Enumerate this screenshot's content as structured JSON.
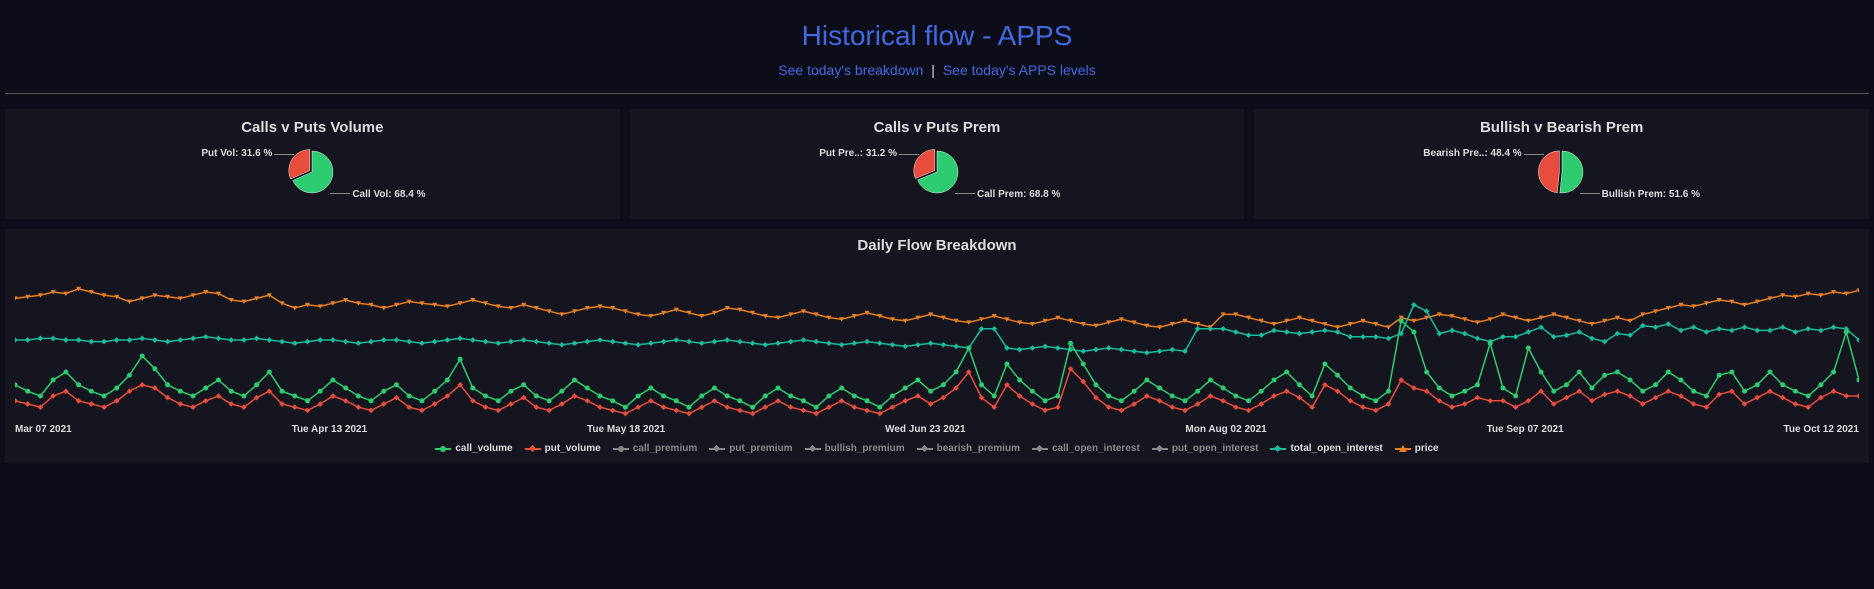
{
  "header": {
    "title": "Historical flow - APPS",
    "link1": "See today's breakdown",
    "link2": "See today's APPS levels"
  },
  "colors": {
    "green": "#2ecc71",
    "red": "#e74c3c",
    "orange": "#e67e22",
    "teal": "#1abc9c",
    "grey": "#888888",
    "bg_panel": "#15151f",
    "text": "#dddddd"
  },
  "pies": [
    {
      "title": "Calls v Puts Volume",
      "slices": [
        {
          "label": "Call Vol: 68.4 %",
          "value": 68.4,
          "color": "#2ecc71"
        },
        {
          "label": "Put Vol: 31.6 %",
          "value": 31.6,
          "color": "#e74c3c"
        }
      ]
    },
    {
      "title": "Calls v Puts Prem",
      "slices": [
        {
          "label": "Call Prem: 68.8 %",
          "value": 68.8,
          "color": "#2ecc71"
        },
        {
          "label": "Put Pre..: 31.2 %",
          "value": 31.2,
          "color": "#e74c3c"
        }
      ]
    },
    {
      "title": "Bullish v Bearish Prem",
      "slices": [
        {
          "label": "Bullish Prem: 51.6 %",
          "value": 51.6,
          "color": "#2ecc71"
        },
        {
          "label": "Bearish Pre..: 48.4 %",
          "value": 48.4,
          "color": "#e74c3c"
        }
      ]
    }
  ],
  "chart": {
    "title": "Daily Flow Breakdown",
    "type": "line",
    "x_ticks": [
      "Mar 07 2021",
      "Tue Apr 13 2021",
      "Tue May 18 2021",
      "Wed Jun 23 2021",
      "Mon Aug 02 2021",
      "Tue Sep 07 2021",
      "Tue Oct 12 2021"
    ],
    "ylim": [
      0,
      100
    ],
    "legend": [
      {
        "key": "call_volume",
        "color": "#2ecc71",
        "marker": "circle",
        "active": true
      },
      {
        "key": "put_volume",
        "color": "#e74c3c",
        "marker": "diamond",
        "active": true
      },
      {
        "key": "call_premium",
        "color": "#888888",
        "marker": "circle",
        "active": false
      },
      {
        "key": "put_premium",
        "color": "#888888",
        "marker": "diamond",
        "active": false
      },
      {
        "key": "bullish_premium",
        "color": "#888888",
        "marker": "diamond",
        "active": false
      },
      {
        "key": "bearish_premium",
        "color": "#888888",
        "marker": "diamond",
        "active": false
      },
      {
        "key": "call_open_interest",
        "color": "#888888",
        "marker": "diamond",
        "active": false
      },
      {
        "key": "put_open_interest",
        "color": "#888888",
        "marker": "diamond",
        "active": false
      },
      {
        "key": "total_open_interest",
        "color": "#1abc9c",
        "marker": "diamond",
        "active": true
      },
      {
        "key": "price",
        "color": "#e67e22",
        "marker": "tri",
        "active": true
      }
    ],
    "series": {
      "price": [
        76,
        77,
        78,
        80,
        79,
        82,
        80,
        78,
        77,
        74,
        76,
        78,
        77,
        76,
        78,
        80,
        79,
        75,
        74,
        76,
        78,
        73,
        70,
        72,
        71,
        73,
        75,
        73,
        72,
        70,
        72,
        74,
        73,
        72,
        71,
        73,
        75,
        73,
        71,
        70,
        72,
        70,
        68,
        66,
        68,
        70,
        71,
        70,
        68,
        66,
        65,
        67,
        69,
        67,
        65,
        67,
        70,
        69,
        67,
        65,
        64,
        66,
        68,
        66,
        64,
        63,
        65,
        67,
        65,
        63,
        62,
        64,
        66,
        64,
        62,
        61,
        63,
        65,
        63,
        61,
        60,
        62,
        64,
        62,
        60,
        59,
        61,
        63,
        61,
        59,
        58,
        60,
        62,
        60,
        58,
        66,
        66,
        64,
        62,
        60,
        62,
        64,
        62,
        60,
        58,
        60,
        62,
        60,
        58,
        64,
        62,
        64,
        66,
        65,
        63,
        61,
        63,
        66,
        64,
        62,
        64,
        66,
        64,
        62,
        60,
        62,
        64,
        62,
        66,
        68,
        70,
        72,
        71,
        73,
        75,
        74,
        72,
        74,
        76,
        78,
        77,
        79,
        78,
        80,
        79,
        81
      ],
      "total_open_interest": [
        50,
        50,
        51,
        51,
        50,
        50,
        49,
        49,
        50,
        50,
        51,
        50,
        49,
        50,
        51,
        52,
        51,
        50,
        50,
        51,
        50,
        49,
        48,
        49,
        50,
        50,
        49,
        48,
        49,
        50,
        50,
        49,
        48,
        49,
        50,
        51,
        50,
        49,
        48,
        49,
        50,
        49,
        48,
        47,
        48,
        49,
        50,
        49,
        48,
        47,
        48,
        49,
        50,
        49,
        48,
        49,
        50,
        49,
        48,
        47,
        48,
        49,
        50,
        49,
        48,
        47,
        48,
        49,
        48,
        47,
        46,
        47,
        48,
        47,
        46,
        45,
        57,
        57,
        45,
        44,
        45,
        46,
        45,
        44,
        43,
        44,
        45,
        44,
        43,
        42,
        43,
        44,
        43,
        57,
        57,
        57,
        55,
        53,
        53,
        56,
        55,
        54,
        55,
        56,
        55,
        52,
        52,
        52,
        51,
        54,
        72,
        68,
        54,
        56,
        54,
        51,
        49,
        52,
        52,
        55,
        58,
        52,
        53,
        55,
        51,
        49,
        54,
        53,
        59,
        58,
        60,
        56,
        58,
        55,
        57,
        56,
        58,
        56,
        56,
        58,
        55,
        57,
        56,
        58,
        57,
        50
      ],
      "call_volume": [
        22,
        18,
        15,
        25,
        30,
        22,
        18,
        15,
        20,
        28,
        40,
        32,
        22,
        18,
        15,
        20,
        25,
        18,
        15,
        22,
        30,
        18,
        15,
        12,
        18,
        25,
        20,
        15,
        12,
        18,
        22,
        15,
        12,
        18,
        25,
        38,
        20,
        15,
        12,
        18,
        22,
        15,
        12,
        18,
        25,
        20,
        15,
        12,
        8,
        15,
        20,
        15,
        12,
        8,
        15,
        20,
        15,
        12,
        8,
        15,
        20,
        15,
        12,
        8,
        15,
        20,
        15,
        12,
        8,
        15,
        20,
        25,
        18,
        22,
        30,
        45,
        22,
        15,
        35,
        25,
        18,
        12,
        15,
        48,
        35,
        22,
        15,
        12,
        18,
        25,
        20,
        15,
        12,
        18,
        25,
        20,
        15,
        12,
        18,
        25,
        30,
        22,
        15,
        35,
        28,
        20,
        15,
        12,
        18,
        62,
        55,
        30,
        20,
        15,
        18,
        22,
        48,
        20,
        15,
        45,
        30,
        18,
        22,
        30,
        20,
        28,
        30,
        25,
        18,
        22,
        30,
        25,
        18,
        15,
        28,
        30,
        18,
        22,
        30,
        22,
        18,
        15,
        22,
        30,
        55,
        25
      ],
      "put_volume": [
        12,
        10,
        8,
        15,
        18,
        12,
        10,
        8,
        12,
        18,
        22,
        20,
        14,
        10,
        8,
        12,
        15,
        10,
        8,
        14,
        18,
        10,
        8,
        6,
        10,
        15,
        12,
        8,
        6,
        10,
        14,
        8,
        6,
        10,
        15,
        22,
        12,
        8,
        6,
        10,
        14,
        8,
        6,
        10,
        15,
        12,
        8,
        6,
        4,
        8,
        12,
        8,
        6,
        4,
        8,
        12,
        8,
        6,
        4,
        8,
        12,
        8,
        6,
        4,
        8,
        12,
        8,
        6,
        4,
        8,
        12,
        15,
        10,
        14,
        20,
        30,
        14,
        8,
        22,
        15,
        10,
        6,
        8,
        32,
        24,
        14,
        8,
        6,
        10,
        15,
        12,
        8,
        6,
        10,
        15,
        12,
        8,
        6,
        10,
        15,
        18,
        14,
        8,
        22,
        18,
        12,
        8,
        6,
        10,
        25,
        20,
        18,
        12,
        8,
        10,
        14,
        12,
        12,
        8,
        12,
        18,
        10,
        14,
        18,
        12,
        16,
        18,
        15,
        10,
        14,
        18,
        15,
        10,
        8,
        16,
        18,
        10,
        14,
        18,
        14,
        10,
        8,
        14,
        18,
        15,
        15
      ]
    }
  }
}
